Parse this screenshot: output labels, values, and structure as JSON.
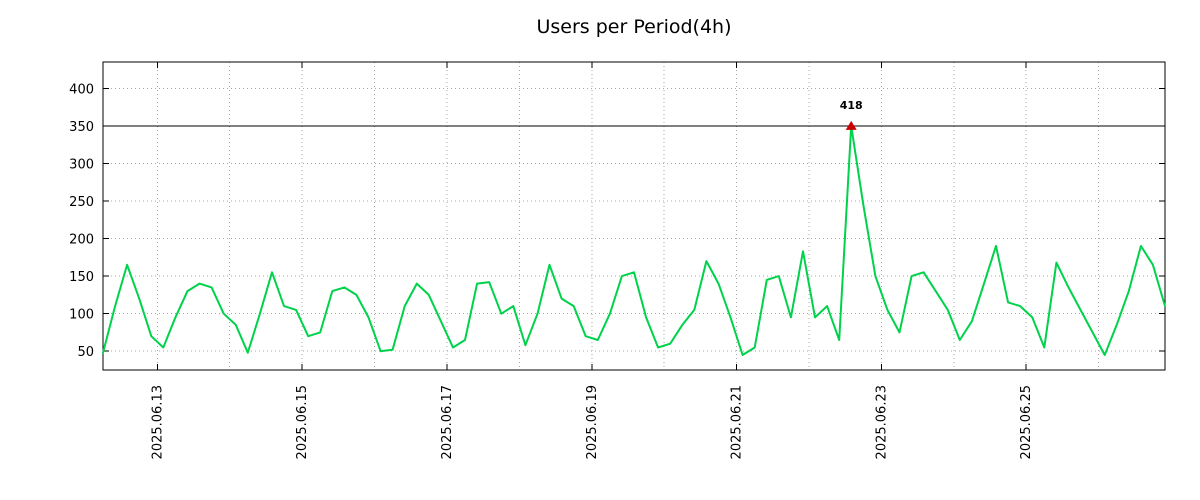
{
  "chart": {
    "title": "Users per Period(4h)"
  },
  "chart_data": {
    "type": "line",
    "title": "Users per Period(4h)",
    "grid": true,
    "background": "#ffffff",
    "line_color": "#00d24b",
    "ylim": [
      25,
      435
    ],
    "y_ticks": [
      50,
      100,
      150,
      200,
      250,
      300,
      350,
      400
    ],
    "clip_line_y": 350,
    "x_tick_labels": [
      "2025.06.13",
      "2025.06.15",
      "2025.06.17",
      "2025.06.19",
      "2025.06.21",
      "2025.06.23",
      "2025.06.25"
    ],
    "x_tick_indices": [
      4.5,
      16.5,
      28.5,
      40.5,
      52.5,
      64.5,
      76.5
    ],
    "x_grid_start": 4.5,
    "x_grid_step": 6,
    "x_step_hours": 4,
    "peak": {
      "index": 62,
      "value": 418,
      "label": "418",
      "marker_color": "#cc0000",
      "label_color": "#00b43c"
    },
    "series": [
      {
        "name": "users",
        "values": [
          48,
          110,
          165,
          120,
          70,
          55,
          95,
          130,
          140,
          135,
          100,
          85,
          48,
          100,
          155,
          110,
          105,
          70,
          75,
          130,
          135,
          125,
          95,
          50,
          52,
          110,
          140,
          125,
          90,
          55,
          65,
          140,
          142,
          100,
          110,
          58,
          100,
          165,
          120,
          110,
          70,
          65,
          100,
          150,
          155,
          95,
          55,
          60,
          85,
          105,
          170,
          140,
          95,
          45,
          55,
          145,
          150,
          95,
          183,
          95,
          110,
          65,
          418,
          245,
          150,
          105,
          75,
          150,
          155,
          130,
          105,
          65,
          90,
          140,
          190,
          115,
          110,
          95,
          55,
          168,
          135,
          105,
          75,
          45,
          85,
          130,
          190,
          165,
          110
        ]
      }
    ]
  }
}
